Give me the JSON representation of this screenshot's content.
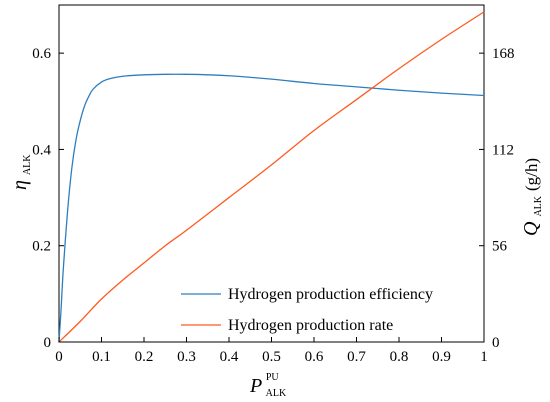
{
  "chart_data": {
    "type": "line",
    "xlim": [
      0,
      1
    ],
    "ylim_left": [
      0,
      0.7
    ],
    "ylim_right": [
      0,
      196
    ],
    "x_ticks": [
      "0",
      "0.1",
      "0.2",
      "0.3",
      "0.4",
      "0.5",
      "0.6",
      "0.7",
      "0.8",
      "0.9",
      "1"
    ],
    "y_left_ticks": [
      "0",
      "0.2",
      "0.4",
      "0.6"
    ],
    "y_right_ticks": [
      "0",
      "56",
      "112",
      "168"
    ],
    "xlabel": {
      "base": "P",
      "sub": "ALK",
      "sup": "PU"
    },
    "ylabel_left": {
      "base": "η",
      "sub": "ALK"
    },
    "ylabel_right": {
      "base": "Q",
      "sub": "ALK",
      "unit": " (g/h)"
    },
    "grid": false,
    "legend_position": "bottom-right",
    "series": [
      {
        "name": "Hydrogen production efficiency",
        "axis": "left",
        "color": "#2e7ebf",
        "x": [
          0,
          0.005,
          0.01,
          0.02,
          0.03,
          0.04,
          0.05,
          0.06,
          0.07,
          0.08,
          0.1,
          0.12,
          0.15,
          0.2,
          0.25,
          0.3,
          0.35,
          0.4,
          0.5,
          0.6,
          0.7,
          0.8,
          0.9,
          1.0
        ],
        "y": [
          0,
          0.07,
          0.15,
          0.27,
          0.36,
          0.42,
          0.46,
          0.49,
          0.51,
          0.525,
          0.54,
          0.547,
          0.552,
          0.555,
          0.556,
          0.556,
          0.555,
          0.553,
          0.546,
          0.537,
          0.53,
          0.523,
          0.517,
          0.512
        ]
      },
      {
        "name": "Hydrogen production rate",
        "axis": "right",
        "color": "#ff5a1f",
        "x": [
          0,
          0.05,
          0.1,
          0.15,
          0.2,
          0.25,
          0.3,
          0.4,
          0.5,
          0.6,
          0.7,
          0.8,
          0.9,
          1.0
        ],
        "y": [
          0,
          12,
          25,
          36,
          46,
          56,
          65,
          84,
          103,
          123,
          141,
          159,
          176,
          192
        ]
      }
    ]
  }
}
